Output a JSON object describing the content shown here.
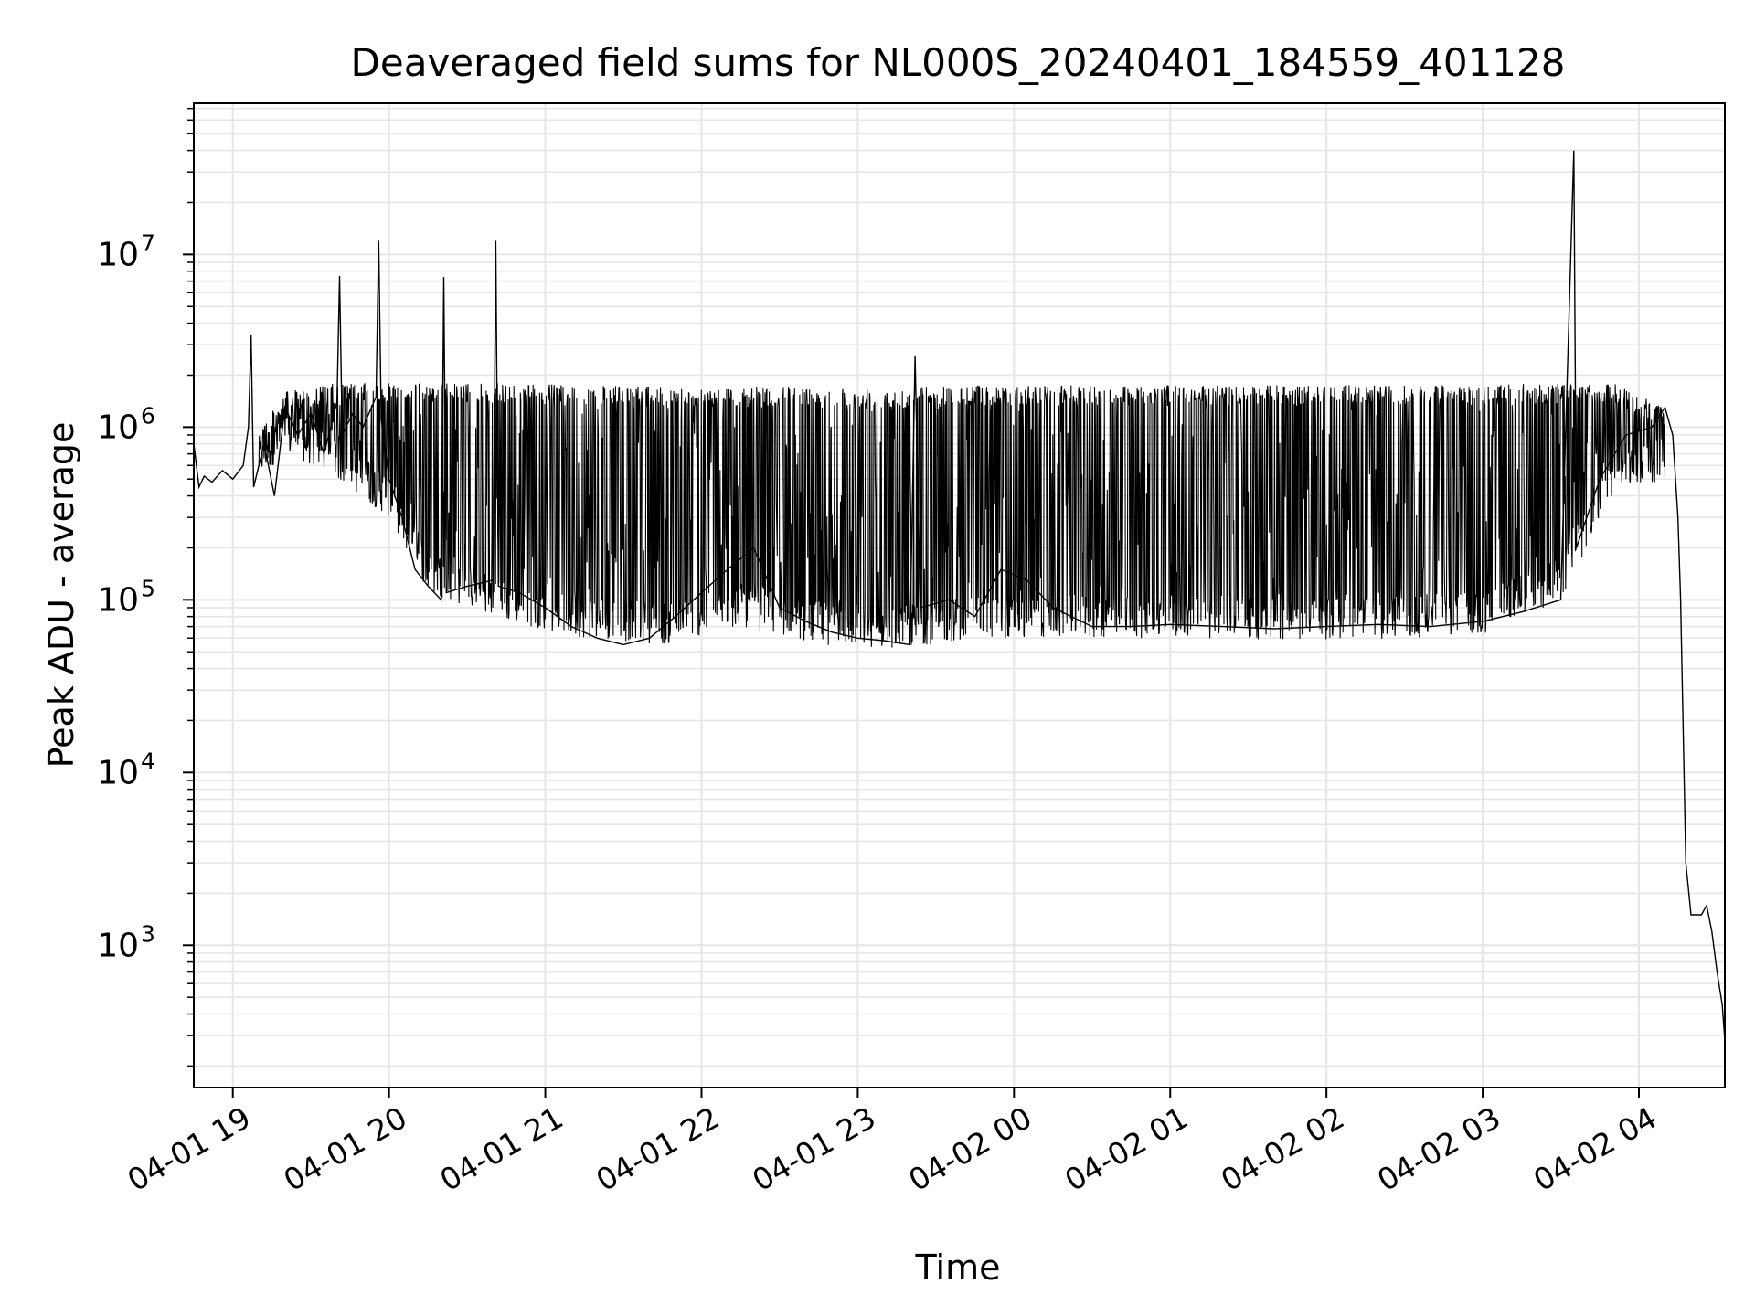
{
  "chart_data": {
    "type": "line",
    "title": "Deaveraged field sums for NL000S_20240401_184559_401128",
    "xlabel": "Time",
    "ylabel": "Peak ADU - average",
    "yscale": "log",
    "ylim": [
      150,
      75000000
    ],
    "xlim": [
      "2024-04-01 18:45",
      "2024-04-02 04:33"
    ],
    "grid": true,
    "colors": {
      "line": "#000000",
      "grid": "#e6e6e6",
      "axes": "#000000"
    },
    "x_ticks": [
      {
        "time": "2024-04-01 19:00",
        "label": "04-01 19"
      },
      {
        "time": "2024-04-01 20:00",
        "label": "04-01 20"
      },
      {
        "time": "2024-04-01 21:00",
        "label": "04-01 21"
      },
      {
        "time": "2024-04-01 22:00",
        "label": "04-01 22"
      },
      {
        "time": "2024-04-01 23:00",
        "label": "04-01 23"
      },
      {
        "time": "2024-04-02 00:00",
        "label": "04-02 00"
      },
      {
        "time": "2024-04-02 01:00",
        "label": "04-02 01"
      },
      {
        "time": "2024-04-02 02:00",
        "label": "04-02 02"
      },
      {
        "time": "2024-04-02 03:00",
        "label": "04-02 03"
      },
      {
        "time": "2024-04-02 04:00",
        "label": "04-02 04"
      }
    ],
    "y_ticks": [
      {
        "value": 1000,
        "base": "10",
        "exp": "3"
      },
      {
        "value": 10000,
        "base": "10",
        "exp": "4"
      },
      {
        "value": 100000,
        "base": "10",
        "exp": "5"
      },
      {
        "value": 1000000,
        "base": "10",
        "exp": "6"
      },
      {
        "value": 10000000,
        "base": "10",
        "exp": "7"
      }
    ],
    "series": [
      {
        "points": [
          [
            "2024-04-01 18:45",
            800000
          ],
          [
            "2024-04-01 18:47",
            450000
          ],
          [
            "2024-04-01 18:49",
            520000
          ],
          [
            "2024-04-01 18:52",
            480000
          ],
          [
            "2024-04-01 18:56",
            560000
          ],
          [
            "2024-04-01 19:00",
            500000
          ],
          [
            "2024-04-01 19:04",
            600000
          ],
          [
            "2024-04-01 19:06",
            1000000
          ],
          [
            "2024-04-01 19:07",
            3400000
          ],
          [
            "2024-04-01 19:08",
            450000
          ],
          [
            "2024-04-01 19:12",
            800000
          ],
          [
            "2024-04-01 19:16",
            400000
          ],
          [
            "2024-04-01 19:20",
            1300000
          ],
          [
            "2024-04-01 19:25",
            900000
          ],
          [
            "2024-04-01 19:30",
            1200000
          ],
          [
            "2024-04-01 19:35",
            700000
          ],
          [
            "2024-04-01 19:40",
            1400000
          ],
          [
            "2024-04-01 19:41",
            7500000
          ],
          [
            "2024-04-01 19:42",
            900000
          ],
          [
            "2024-04-01 19:46",
            1200000
          ],
          [
            "2024-04-01 19:50",
            1000000
          ],
          [
            "2024-04-01 19:55",
            1500000
          ],
          [
            "2024-04-01 19:56",
            12000000
          ],
          [
            "2024-04-01 19:57",
            1100000
          ],
          [
            "2024-04-01 20:00",
            500000
          ],
          [
            "2024-04-01 20:05",
            300000
          ],
          [
            "2024-04-01 20:10",
            150000
          ],
          [
            "2024-04-01 20:15",
            120000
          ],
          [
            "2024-04-01 20:20",
            100000
          ],
          [
            "2024-04-01 20:21",
            7400000
          ],
          [
            "2024-04-01 20:22",
            110000
          ],
          [
            "2024-04-01 20:30",
            120000
          ],
          [
            "2024-04-01 20:40",
            130000
          ],
          [
            "2024-04-01 20:41",
            12000000
          ],
          [
            "2024-04-01 20:42",
            120000
          ],
          [
            "2024-04-01 20:50",
            110000
          ],
          [
            "2024-04-01 21:00",
            90000
          ],
          [
            "2024-04-01 21:10",
            70000
          ],
          [
            "2024-04-01 21:20",
            60000
          ],
          [
            "2024-04-01 21:30",
            55000
          ],
          [
            "2024-04-01 21:40",
            60000
          ],
          [
            "2024-04-01 21:50",
            80000
          ],
          [
            "2024-04-01 22:00",
            110000
          ],
          [
            "2024-04-01 22:10",
            150000
          ],
          [
            "2024-04-01 22:20",
            200000
          ],
          [
            "2024-04-01 22:30",
            90000
          ],
          [
            "2024-04-01 22:40",
            75000
          ],
          [
            "2024-04-01 22:50",
            65000
          ],
          [
            "2024-04-01 23:00",
            60000
          ],
          [
            "2024-04-01 23:10",
            58000
          ],
          [
            "2024-04-01 23:20",
            55000
          ],
          [
            "2024-04-01 23:22",
            2600000
          ],
          [
            "2024-04-01 23:24",
            90000
          ],
          [
            "2024-04-01 23:35",
            100000
          ],
          [
            "2024-04-01 23:45",
            80000
          ],
          [
            "2024-04-01 23:55",
            150000
          ],
          [
            "2024-04-02 00:05",
            130000
          ],
          [
            "2024-04-02 00:15",
            90000
          ],
          [
            "2024-04-02 00:30",
            70000
          ],
          [
            "2024-04-02 00:45",
            70000
          ],
          [
            "2024-04-02 01:00",
            72000
          ],
          [
            "2024-04-02 01:20",
            70000
          ],
          [
            "2024-04-02 01:40",
            68000
          ],
          [
            "2024-04-02 02:00",
            70000
          ],
          [
            "2024-04-02 02:20",
            72000
          ],
          [
            "2024-04-02 02:40",
            70000
          ],
          [
            "2024-04-02 03:00",
            75000
          ],
          [
            "2024-04-02 03:15",
            85000
          ],
          [
            "2024-04-02 03:30",
            100000
          ],
          [
            "2024-04-02 03:35",
            40000000
          ],
          [
            "2024-04-02 03:36",
            200000
          ],
          [
            "2024-04-02 03:45",
            500000
          ],
          [
            "2024-04-02 03:55",
            900000
          ],
          [
            "2024-04-02 04:05",
            1000000
          ],
          [
            "2024-04-02 04:10",
            1300000
          ],
          [
            "2024-04-02 04:13",
            900000
          ],
          [
            "2024-04-02 04:15",
            300000
          ],
          [
            "2024-04-02 04:16",
            100000
          ],
          [
            "2024-04-02 04:18",
            3000
          ],
          [
            "2024-04-02 04:20",
            1500
          ],
          [
            "2024-04-02 04:24",
            1500
          ],
          [
            "2024-04-02 04:26",
            1700
          ],
          [
            "2024-04-02 04:28",
            1200
          ],
          [
            "2024-04-02 04:30",
            700
          ],
          [
            "2024-04-02 04:32",
            450
          ],
          [
            "2024-04-02 04:33",
            280
          ]
        ],
        "envelope": [
          [
            "2024-04-01 19:10",
            500000,
            1000000
          ],
          [
            "2024-04-01 19:20",
            700000,
            1600000
          ],
          [
            "2024-04-01 19:40",
            500000,
            1800000
          ],
          [
            "2024-04-01 20:00",
            300000,
            1800000
          ],
          [
            "2024-04-01 20:15",
            110000,
            1800000
          ],
          [
            "2024-04-01 20:45",
            75000,
            1800000
          ],
          [
            "2024-04-01 21:15",
            60000,
            1750000
          ],
          [
            "2024-04-01 21:45",
            55000,
            1700000
          ],
          [
            "2024-04-01 22:15",
            70000,
            1700000
          ],
          [
            "2024-04-01 22:45",
            55000,
            1700000
          ],
          [
            "2024-04-01 23:15",
            52000,
            1700000
          ],
          [
            "2024-04-01 23:45",
            60000,
            1750000
          ],
          [
            "2024-04-02 00:15",
            60000,
            1750000
          ],
          [
            "2024-04-02 01:00",
            60000,
            1750000
          ],
          [
            "2024-04-02 02:00",
            58000,
            1750000
          ],
          [
            "2024-04-02 03:00",
            62000,
            1750000
          ],
          [
            "2024-04-02 03:30",
            100000,
            1800000
          ],
          [
            "2024-04-02 03:50",
            400000,
            1800000
          ],
          [
            "2024-04-02 04:10",
            500000,
            1300000
          ]
        ]
      }
    ]
  }
}
